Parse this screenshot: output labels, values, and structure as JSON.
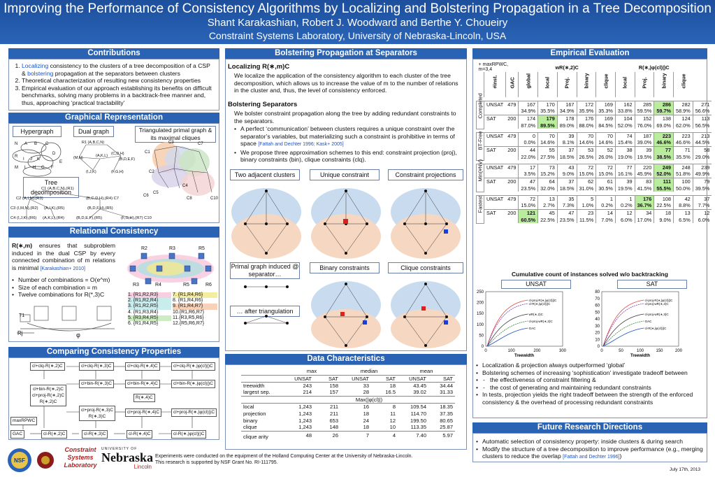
{
  "header": {
    "title": "Improving the Performance of Consistency Algorithms by Localizing and Bolstering Propagation in a Tree Decomposition",
    "authors": "Shant Karakashian, Robert J. Woodward and Berthe Y. Choueiry",
    "affiliation": "Constraint Systems Laboratory, University of Nebraska-Lincoln, USA"
  },
  "sections": {
    "contributions": "Contributions",
    "graphical": "Graphical Representation",
    "relational": "Relational Consistency",
    "comparing": "Comparing Consistency Properties",
    "bolstering": "Bolstering Propagation at Separators",
    "datachar": "Data Characteristics",
    "empirical": "Empirical Evaluation",
    "future": "Future Research Directions"
  },
  "contributions": {
    "c1a": "Localizing",
    "c1b": " consistency to the clusters of a tree decomposition of a CSP & ",
    "c1c": "bolstering",
    "c1d": " propagation at the separators between clusters",
    "c2": "Theoretical characterization of resulting new consistency properties",
    "c3": "Empirical evaluation of our approach establishing its benefits on difficult benchmarks, solving many problems in a backtrack-free manner and, thus, approaching ‘practical tractability’"
  },
  "graphical": {
    "hypergraph": "Hypergraph",
    "dual": "Dual graph",
    "triangulated": "Triangulated primal graph & its maximal cliques",
    "treedecomp": "Tree decomposition"
  },
  "relational": {
    "p1a": "R(∗,m)",
    "p1b": " ensures that subproblem induced in the dual CSP by every connected combination of m relations is minimal ",
    "cite": "[Karakashian+ 2010]",
    "b1": "Number of combinations = O(e^m)",
    "b2": "Size of each combination = m",
    "b3": "Twelve combinations for R(*,3)C",
    "combos": [
      "1. {R1,R2,R3}",
      "2. {R1,R2,R4}",
      "3. {R1,R2,R5}",
      "4. {R1,R3,R4}",
      "5. {R3,R4,R5}",
      "6. {R1,R4,R5}",
      "7. {R1,R4,R6}",
      "8. {R1,R4,R6}",
      "9. {R1,R4,R7}",
      "10.{R1,R6,R7}",
      "11.{R3,R5,R6}",
      "12.{R5,R6,R7}"
    ],
    "rels": [
      "R2",
      "R3",
      "R5",
      "R1",
      "R3",
      "R4",
      "R5",
      "R6",
      "R7"
    ],
    "phi": "φ",
    "tlab": "T1",
    "rlab": "Rj"
  },
  "comparing": {
    "nodes": [
      "cl+clq-R(∗,2)C",
      "cl+clq-R(∗,3)C",
      "cl+clq-R(∗,4)C",
      "cl+clq-R(∗,|φ(cl)|)C",
      "cl+bin-R(∗,2)C",
      "cl+proj-R(∗,2)C",
      "R(∗,2)C",
      "cl+bin-R(∗,3)C",
      "cl+bin-R(∗,4)C",
      "cl+bin-R(∗,|φ(cl)|)C",
      "R(∗,4)C",
      "cl+proj-R(∗,3)C",
      "R(∗,3)C",
      "cl+proj-R(∗,4)C",
      "cl+proj-R(∗,|φ(cl)|)C",
      "maxRPWC",
      "GAC",
      "cl-R(∗,2)C",
      "cl-R(∗,3)C",
      "cl-R(∗,4)C",
      "cl-R(∗,|φ(cl)|)C"
    ]
  },
  "bolstering": {
    "h1": "Localizing R(∗,m)C",
    "p1": "We localize the application of the consistency algorithm to each cluster of the tree decomposition, which allows us to increase the value of m to the number of relations in the cluster and, thus, the level of consistency enforced.",
    "h2": "Bolstering Separators",
    "p2": "We bolster constraint propagation along the tree by adding redundant constraints to the separators.",
    "b1": "A perfect ‘communication’ between clusters requires a unique constraint over the separator’s variables, but materializing such a constraint is prohibitive in terms of space ",
    "b1cite": "[Fattah and Dechter 1996; Kask+ 2005]",
    "b2": "We propose three approximation schemes to this end: constraint projection (proj), binary constraints (bin), clique constraints (clq).",
    "panels": [
      "Two adjacent clusters",
      "Unique constraint",
      "Constraint projections",
      "Primal graph induced @ separator…",
      "Binary constraints",
      "Clique constraints",
      "… after triangulation"
    ]
  },
  "datachar": {
    "groups": [
      "max",
      "median",
      "mean"
    ],
    "sub": [
      "UNSAT",
      "SAT",
      "UNSAT",
      "SAT",
      "UNSAT",
      "SAT"
    ],
    "rows": [
      {
        "label": "treewidth",
        "v": [
          "243",
          "158",
          "33",
          "18",
          "43.45",
          "34.44"
        ]
      },
      {
        "label": "largest sep.",
        "v": [
          "214",
          "157",
          "28",
          "16.5",
          "39.02",
          "31.33"
        ]
      }
    ],
    "maxlab": "Max(|φ(cl)|)",
    "rows2": [
      {
        "label": "local",
        "v": [
          "1,243",
          "211",
          "16",
          "8",
          "109.54",
          "18.35"
        ]
      },
      {
        "label": "projection",
        "v": [
          "1,243",
          "211",
          "18",
          "11",
          "114.70",
          "37.35"
        ]
      },
      {
        "label": "binary",
        "v": [
          "1,243",
          "653",
          "24",
          "12",
          "199.50",
          "80.65"
        ]
      },
      {
        "label": "clique",
        "v": [
          "1,243",
          "148",
          "18",
          "10",
          "113.35",
          "25.87"
        ]
      }
    ],
    "rows3": [
      {
        "label": "clique arity",
        "v": [
          "48",
          "26",
          "7",
          "4",
          "7.40",
          "5.97"
        ]
      }
    ]
  },
  "empirical": {
    "corner": "+ maxRPWC, m=3,4",
    "g1": "wR(∗,2)C",
    "g2": "R(∗,|φ(cl)|)C",
    "cols": [
      "#inst.",
      "GAC",
      "global",
      "local",
      "Proj.",
      "binary",
      "clique",
      "local",
      "Proj.",
      "binary",
      "clique"
    ],
    "blocks": [
      {
        "name": "Completed",
        "rows": [
          {
            "t": "UNSAT",
            "n": "479",
            "v": [
              "167",
              "170",
              "167",
              "172",
              "169",
              "162",
              "285",
              "286",
              "282",
              "271"
            ],
            "h": [
              7
            ]
          },
          {
            "t": "",
            "n": "",
            "v": [
              "34.9%",
              "35.5%",
              "34.9%",
              "35.9%",
              "35.3%",
              "33.8%",
              "59.5%",
              "59.7%",
              "58.9%",
              "56.6%"
            ],
            "h": [
              7
            ]
          },
          {
            "t": "SAT",
            "n": "200",
            "v": [
              "174",
              "179",
              "178",
              "176",
              "169",
              "104",
              "152",
              "138",
              "124",
              "113"
            ],
            "h": [
              1
            ]
          },
          {
            "t": "",
            "n": "",
            "v": [
              "87.0%",
              "89.5%",
              "89.0%",
              "88.0%",
              "84.5%",
              "52.0%",
              "76.0%",
              "69.0%",
              "62.0%",
              "56.5%"
            ],
            "h": [
              1
            ]
          }
        ]
      },
      {
        "name": "BT-Free",
        "rows": [
          {
            "t": "UNSAT",
            "n": "479",
            "v": [
              "0",
              "70",
              "39",
              "70",
              "70",
              "74",
              "187",
              "223",
              "223",
              "213"
            ],
            "h": [
              7
            ]
          },
          {
            "t": "",
            "n": "",
            "v": [
              "0.0%",
              "14.6%",
              "8.1%",
              "14.6%",
              "14.6%",
              "15.4%",
              "39.0%",
              "46.6%",
              "46.6%",
              "44.5%"
            ],
            "h": [
              7
            ]
          },
          {
            "t": "SAT",
            "n": "200",
            "v": [
              "44",
              "55",
              "37",
              "53",
              "52",
              "38",
              "39",
              "77",
              "71",
              "58"
            ],
            "h": [
              7
            ]
          },
          {
            "t": "",
            "n": "",
            "v": [
              "22.0%",
              "27.5%",
              "18.5%",
              "26.5%",
              "26.0%",
              "19.0%",
              "19.5%",
              "38.5%",
              "35.5%",
              "29.0%"
            ],
            "h": [
              7
            ]
          }
        ]
      },
      {
        "name": "Min(#NV)",
        "rows": [
          {
            "t": "UNSAT",
            "n": "479",
            "v": [
              "17",
              "73",
              "43",
              "72",
              "72",
              "77",
              "220",
              "249",
              "248",
              "239"
            ],
            "h": [
              7
            ]
          },
          {
            "t": "",
            "n": "",
            "v": [
              "3.5%",
              "15.2%",
              "9.0%",
              "15.0%",
              "15.0%",
              "16.1%",
              "45.9%",
              "52.0%",
              "51.8%",
              "49.9%"
            ],
            "h": [
              7
            ]
          },
          {
            "t": "SAT",
            "n": "200",
            "v": [
              "47",
              "64",
              "37",
              "62",
              "61",
              "39",
              "83",
              "111",
              "100",
              "79"
            ],
            "h": [
              7
            ]
          },
          {
            "t": "",
            "n": "",
            "v": [
              "23.5%",
              "32.0%",
              "18.5%",
              "31.0%",
              "30.5%",
              "19.5%",
              "41.5%",
              "55.5%",
              "50.0%",
              "39.5%"
            ],
            "h": [
              7
            ]
          }
        ]
      },
      {
        "name": "Fastest",
        "rows": [
          {
            "t": "UNSAT",
            "n": "479",
            "v": [
              "72",
              "13",
              "35",
              "5",
              "1",
              "1",
              "176",
              "108",
              "42",
              "37"
            ],
            "h": [
              6
            ]
          },
          {
            "t": "",
            "n": "",
            "v": [
              "15.0%",
              "2.7%",
              "7.3%",
              "1.0%",
              "0.2%",
              "0.2%",
              "36.7%",
              "22.5%",
              "8.8%",
              "7.7%"
            ],
            "h": [
              6
            ]
          },
          {
            "t": "SAT",
            "n": "200",
            "v": [
              "121",
              "45",
              "47",
              "23",
              "14",
              "12",
              "34",
              "18",
              "13",
              "12"
            ],
            "h": [
              0
            ]
          },
          {
            "t": "",
            "n": "",
            "v": [
              "60.5%",
              "22.5%",
              "23.5%",
              "11.5%",
              "7.0%",
              "6.0%",
              "17.0%",
              "9.0%",
              "6.5%",
              "6.0%"
            ],
            "h": [
              0
            ]
          }
        ]
      }
    ]
  },
  "cumulative": {
    "title": "Cumulative count of instances solved w/o backtracking",
    "unsat": "UNSAT",
    "sat": "SAT",
    "xlabel": "Treewidth",
    "unsat_yticks": [
      "250",
      "200",
      "150",
      "100",
      "50",
      "0"
    ],
    "unsat_xticks": [
      "0",
      "100",
      "200",
      "300"
    ],
    "sat_yticks": [
      "80",
      "70",
      "60",
      "50",
      "40",
      "30",
      "20",
      "10",
      "0"
    ],
    "sat_xticks": [
      "0",
      "50",
      "100",
      "150",
      "200"
    ],
    "legend_unsat": [
      "cl-proj-R(∗,|φ(cl)|)C",
      "cl-R(∗,|φ(cl)|)C",
      "wR(∗,2)C",
      "cl-proj-wR(∗,2)C",
      "GAC"
    ],
    "legend_sat": [
      "cl-proj-R(∗,|φ(cl)|)C",
      "cl-proj-wR(∗,2)C",
      "cl-proj-wR(∗,3)C",
      "GAC",
      "cl-R(∗,|φ(cl)|)C"
    ]
  },
  "findings": {
    "f1": "Localization & projection always outperformed ‘global’",
    "f2": "Bolstering schemes of increasing ‘sophistication’ investigate tradeoff between",
    "f2a": "the effectiveness of constraint filtering &",
    "f2b": "the cost of generating and maintaining redundant constraints",
    "f3": "In tests, projection yields the right tradeoff between the strength of the enforced consistency & the overhead of processing redundant constraints"
  },
  "future": {
    "f1": "Automatic selection of consistency property: inside clusters & during search",
    "f2": "Modify the structure of a tree decomposition to improve performance (e.g., merging clusters to reduce the overlap ",
    "f2cite": "[Fattah and Dechter 1996]",
    "f2end": ")"
  },
  "footer": {
    "ack1": "Experiments were conducted on the equipment of the Holland Computing Center at the University of Nebraska-Lincoln.",
    "ack2": "This research is supported by NSF Grant No. RI-111795.",
    "date": "July 17th, 2013",
    "nsf": "NSF",
    "csl": "Constraint Systems Laboratory",
    "unl1": "UNIVERSITY OF",
    "unl2": "Nebraska",
    "unl3": "Lincoln"
  },
  "colors": {
    "header": "#2a63b3",
    "highlight": "#b9ec9d",
    "cite": "#1a52c9"
  }
}
